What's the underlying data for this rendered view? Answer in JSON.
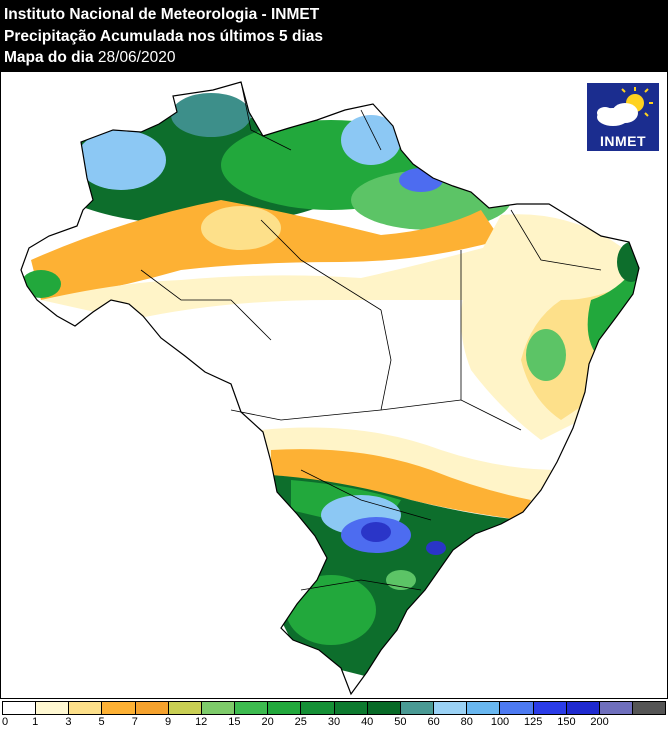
{
  "header": {
    "line1": "Instituto Nacional de Meteorologia - INMET",
    "line2": "Precipitação Acumulada nos últimos 5 dias",
    "line3_label": "Mapa do dia",
    "line3_date": "28/06/2020"
  },
  "logo": {
    "text": "INMET",
    "icon": "sun-cloud-icon"
  },
  "legend": {
    "ticks": [
      "0",
      "1",
      "3",
      "5",
      "7",
      "9",
      "12",
      "15",
      "20",
      "25",
      "30",
      "40",
      "50",
      "60",
      "80",
      "100",
      "125",
      "150",
      "200"
    ],
    "colors": [
      "#ffffff",
      "#fff8d2",
      "#fde08a",
      "#fdb134",
      "#f5a22d",
      "#c9cf54",
      "#7ecb6a",
      "#3dbb4f",
      "#22a83c",
      "#159036",
      "#0d7a2f",
      "#086a27",
      "#4a9a94",
      "#9bd2f5",
      "#69b7f0",
      "#4d7af2",
      "#2b3ce8",
      "#1f2ad0",
      "#6f6fbd",
      "#555555"
    ]
  },
  "map_colors": {
    "dark_green": "#0d6e2c",
    "green": "#22a83c",
    "light_green": "#5cc466",
    "yellow": "#fde08a",
    "orange": "#fdb134",
    "pale": "#fff4c8",
    "teal": "#3d8f8a",
    "light_blue": "#8cc8f4",
    "blue": "#4d6cf0",
    "dark_blue": "#2a35c8"
  }
}
